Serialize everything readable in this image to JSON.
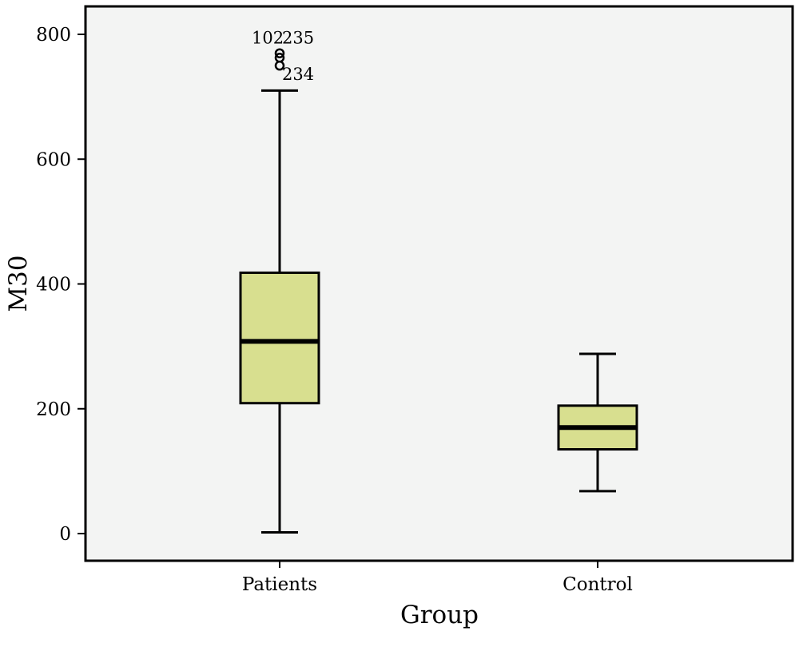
{
  "chart_data": {
    "type": "box",
    "xlabel": "Group",
    "ylabel": "M30",
    "ylim": [
      0,
      800
    ],
    "yticks": [
      0,
      200,
      400,
      600,
      800
    ],
    "ytick_labels": [
      "0",
      "200",
      "400",
      "600",
      "800"
    ],
    "grid": false,
    "box_fill": "#d8df8f",
    "plot_background": "#f3f4f3",
    "categories": [
      "Patients",
      "Control"
    ],
    "boxes": [
      {
        "category": "Patients",
        "whisker_low": 2,
        "q1": 209,
        "median": 308,
        "q3": 418,
        "whisker_high": 710,
        "outliers": [
          {
            "label": "102",
            "value": 762
          },
          {
            "label": "235",
            "value": 760
          },
          {
            "label": "234",
            "value": 755
          }
        ]
      },
      {
        "category": "Control",
        "whisker_low": 68,
        "q1": 135,
        "median": 170,
        "q3": 205,
        "whisker_high": 288,
        "outliers": []
      }
    ]
  }
}
